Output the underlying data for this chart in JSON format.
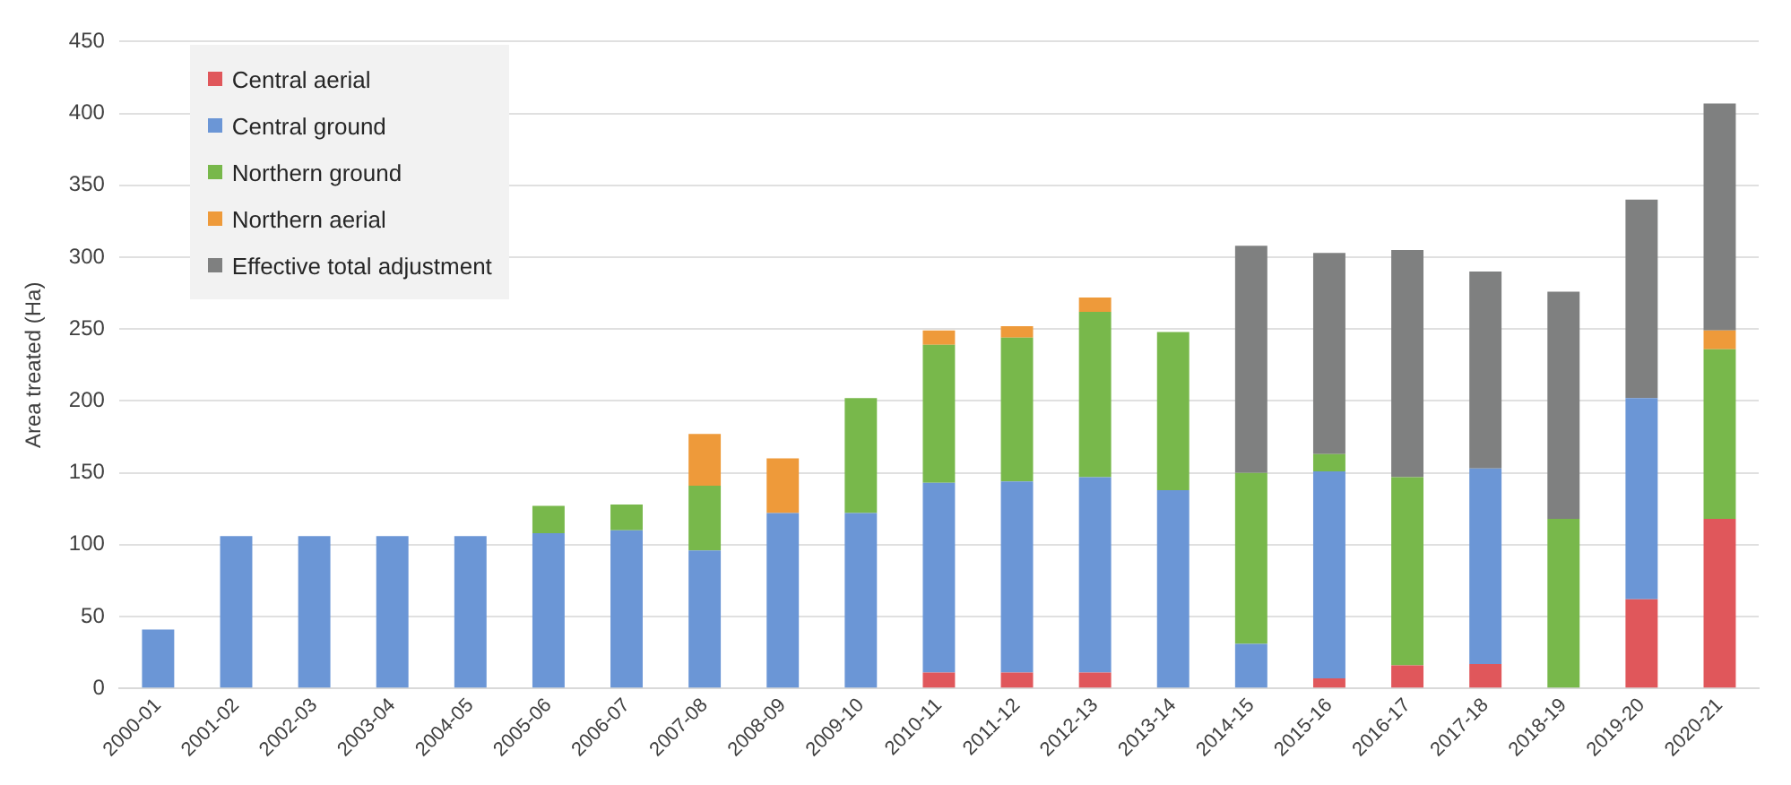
{
  "chart_data": {
    "type": "bar",
    "stacked": true,
    "ylabel": "Area treated (Ha)",
    "categories": [
      "2000-01",
      "2001-02",
      "2002-03",
      "2003-04",
      "2004-05",
      "2005-06",
      "2006-07",
      "2007-08",
      "2008-09",
      "2009-10",
      "2010-11",
      "2011-12",
      "2012-13",
      "2013-14",
      "2014-15",
      "2015-16",
      "2016-17",
      "2017-18",
      "2018-19",
      "2019-20",
      "2020-21"
    ],
    "series": [
      {
        "name": "Central aerial",
        "color": "#e0575b",
        "values": [
          null,
          null,
          null,
          null,
          null,
          null,
          null,
          null,
          null,
          null,
          11,
          11,
          11,
          null,
          null,
          7,
          16,
          17,
          null,
          62,
          118
        ]
      },
      {
        "name": "Central ground",
        "color": "#6b96d6",
        "values": [
          41,
          106,
          106,
          106,
          106,
          108,
          110,
          96,
          122,
          122,
          132,
          133,
          136,
          138,
          31,
          144,
          null,
          136,
          null,
          140,
          null
        ]
      },
      {
        "name": "Northern ground",
        "color": "#78b84b",
        "values": [
          null,
          null,
          null,
          null,
          null,
          19,
          18,
          45,
          null,
          80,
          96,
          100,
          115,
          110,
          119,
          12,
          131,
          null,
          118,
          null,
          118
        ]
      },
      {
        "name": "Northern aerial",
        "color": "#ee9a3a",
        "values": [
          null,
          null,
          null,
          null,
          null,
          null,
          null,
          36,
          38,
          null,
          10,
          8,
          10,
          null,
          null,
          null,
          null,
          null,
          null,
          null,
          13
        ]
      },
      {
        "name": "Effective total adjustment",
        "color": "#7f8080",
        "values": [
          null,
          null,
          null,
          null,
          null,
          null,
          null,
          null,
          null,
          null,
          null,
          null,
          null,
          null,
          158,
          140,
          158,
          137,
          158,
          138,
          158
        ]
      }
    ],
    "ylim": [
      0,
      450
    ],
    "yticks": [
      0,
      50,
      100,
      150,
      200,
      250,
      300,
      350,
      400,
      450
    ],
    "grid": "y",
    "legend": "top left"
  }
}
